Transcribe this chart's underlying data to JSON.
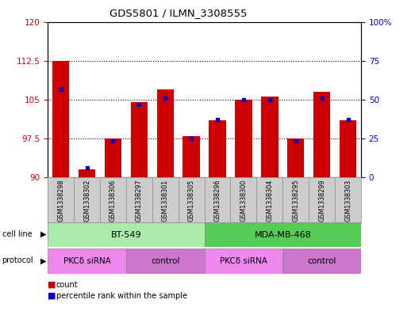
{
  "title": "GDS5801 / ILMN_3308555",
  "samples": [
    "GSM1338298",
    "GSM1338302",
    "GSM1338306",
    "GSM1338297",
    "GSM1338301",
    "GSM1338305",
    "GSM1338296",
    "GSM1338300",
    "GSM1338304",
    "GSM1338295",
    "GSM1338299",
    "GSM1338303"
  ],
  "red_values": [
    112.5,
    91.5,
    97.5,
    104.5,
    107.0,
    98.0,
    101.0,
    105.0,
    105.5,
    97.5,
    106.5,
    101.0
  ],
  "blue_values": [
    107.0,
    91.8,
    97.0,
    104.0,
    105.2,
    97.5,
    101.2,
    105.0,
    105.0,
    97.0,
    105.2,
    101.2
  ],
  "ymin": 90,
  "ymax": 120,
  "yticks_left": [
    90,
    97.5,
    105,
    112.5,
    120
  ],
  "yticks_right_vals": [
    0,
    25,
    50,
    75,
    100
  ],
  "yticks_right_labels": [
    "0",
    "25",
    "50",
    "75",
    "100%"
  ],
  "left_color": "#cc0000",
  "right_color": "#0000cc",
  "bar_color": "#cc0000",
  "blue_color": "#0000cc",
  "cell_line_labels": [
    "BT-549",
    "MDA-MB-468"
  ],
  "cell_line_color_bt": "#aaeaaa",
  "cell_line_color_mda": "#55cc55",
  "protocol_labels": [
    "PKCδ siRNA",
    "control",
    "PKCδ siRNA",
    "control"
  ],
  "protocol_color_sirna": "#ee88ee",
  "protocol_color_control": "#cc77cc",
  "bg_color": "#ffffff",
  "plot_bg_color": "#ffffff",
  "tick_bg_color": "#cccccc",
  "gridline_color": "#000000"
}
